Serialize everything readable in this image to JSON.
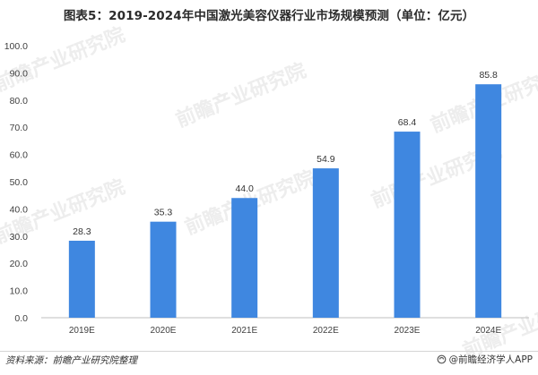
{
  "chart_data": {
    "type": "bar",
    "title": "图表5：2019-2024年中国激光美容仪器行业市场规模预测（单位：亿元）",
    "categories": [
      "2019E",
      "2020E",
      "2021E",
      "2022E",
      "2023E",
      "2024E"
    ],
    "series": [
      {
        "values": [
          28.3,
          35.3,
          44.0,
          54.9,
          68.4,
          85.8
        ]
      }
    ],
    "data_labels": [
      "28.3",
      "35.3",
      "44.0",
      "54.9",
      "68.4",
      "85.8"
    ],
    "y_ticks": [
      "0.0",
      "10.0",
      "20.0",
      "30.0",
      "40.0",
      "50.0",
      "60.0",
      "70.0",
      "80.0",
      "90.0",
      "100.0"
    ],
    "ylim": [
      0,
      100
    ],
    "xlabel": "",
    "ylabel": "",
    "grid": false,
    "bar_color": "#3f87e0"
  },
  "watermark": "前瞻产业研究院",
  "footer": {
    "source": "资料来源：前瞻产业研究院整理",
    "brand": "@前瞻经济学人APP"
  }
}
